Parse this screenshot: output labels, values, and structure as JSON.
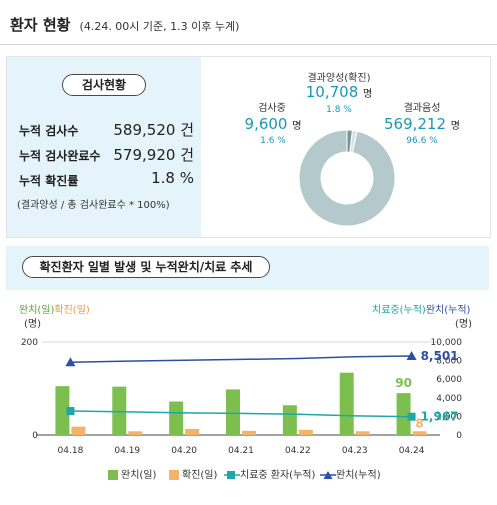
{
  "header": {
    "title": "환자 현황",
    "subtitle": "(4.24. 00시 기준, 1.3 이후 누계)"
  },
  "test_status": {
    "title": "검사현황",
    "rows": [
      {
        "label": "누적 검사수",
        "value": "589,520 건"
      },
      {
        "label": "누적 검사완료수",
        "value": "579,920 건"
      },
      {
        "label": "누적 확진률",
        "value": "1.8 %"
      }
    ],
    "note": "(결과양성 / 총 검사완료수 * 100%)"
  },
  "donut": {
    "positive": {
      "label": "결과양성(확진)",
      "value": "10,708",
      "unit": "명",
      "pct": "1.8 %"
    },
    "testing": {
      "label": "검사중",
      "value": "9,600",
      "unit": "명",
      "pct": "1.6 %"
    },
    "negative": {
      "label": "결과음성",
      "value": "569,212",
      "unit": "명",
      "pct": "96.6 %"
    },
    "colors": {
      "negative": "#b3c9cb",
      "testing": "#d6e2e3",
      "positive": "#7d9496"
    }
  },
  "trend": {
    "title": "확진환자 일별 발생 및 누적완치/치료 추세",
    "left_axis_title": {
      "part1": "완치(일)",
      "part2": "확진(일)",
      "unit": "(명)"
    },
    "right_axis_title": {
      "part1": "치료중(누적)",
      "part2": "완치(누적)",
      "unit": "(명)"
    },
    "last_labels": {
      "recovered_daily": "90",
      "confirmed_daily": "8",
      "treatment_cum": "1,967",
      "recovered_cum": "8,501"
    },
    "legend": [
      "완치(일)",
      "확진(일)",
      "치료중 환자(누적)",
      "완치(누적)"
    ]
  },
  "chart_data": {
    "type": "bar",
    "categories": [
      "04.18",
      "04.19",
      "04.20",
      "04.21",
      "04.22",
      "04.23",
      "04.24"
    ],
    "left_axis": {
      "ticks": [
        "0",
        "200"
      ],
      "ylim": [
        0,
        200
      ]
    },
    "right_axis": {
      "ticks": [
        "0",
        "2,000",
        "4,000",
        "6,000",
        "8,000",
        "10,000"
      ],
      "ylim": [
        0,
        10000
      ]
    },
    "series": [
      {
        "name": "완치(일)",
        "type": "bar",
        "axis": "left",
        "color": "#7dbf4e",
        "values": [
          105,
          104,
          72,
          98,
          64,
          134,
          90
        ]
      },
      {
        "name": "확진(일)",
        "type": "bar",
        "axis": "left",
        "color": "#f3b469",
        "values": [
          18,
          8,
          13,
          9,
          11,
          8,
          8
        ]
      },
      {
        "name": "치료중 환자(누적)",
        "type": "line",
        "axis": "right",
        "color": "#1fa7a7",
        "values": [
          2576,
          2484,
          2385,
          2324,
          2233,
          2051,
          1967
        ]
      },
      {
        "name": "완치(누적)",
        "type": "line",
        "axis": "right",
        "color": "#2d4fa3",
        "values": [
          7829,
          7937,
          8042,
          8127,
          8229,
          8411,
          8501
        ]
      }
    ],
    "xlabel": "",
    "ylabel": "",
    "grid": true,
    "legend_position": "bottom"
  }
}
